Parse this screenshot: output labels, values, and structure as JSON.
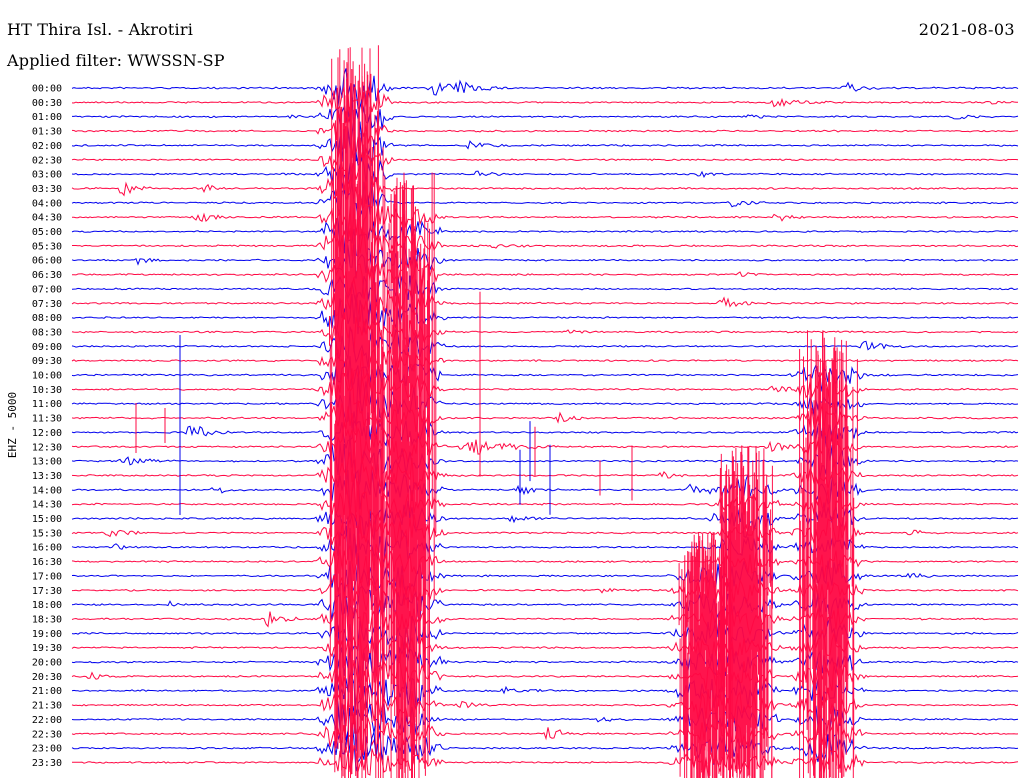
{
  "header": {
    "station": "HT Thira Isl. - Akrotiri",
    "filter": "Applied filter: WWSSN-SP",
    "date": "2021-08-03"
  },
  "chart_data": {
    "type": "line",
    "ylabel": "EHZ - 5000",
    "row_labels": [
      "00:00",
      "00:30",
      "01:00",
      "01:30",
      "02:00",
      "02:30",
      "03:00",
      "03:30",
      "04:00",
      "04:30",
      "05:00",
      "05:30",
      "06:00",
      "06:30",
      "07:00",
      "07:30",
      "08:00",
      "08:30",
      "09:00",
      "09:30",
      "10:00",
      "10:30",
      "11:00",
      "11:30",
      "12:00",
      "12:30",
      "13:00",
      "13:30",
      "14:00",
      "14:30",
      "15:00",
      "15:30",
      "16:00",
      "16:30",
      "17:00",
      "17:30",
      "18:00",
      "18:30",
      "19:00",
      "19:30",
      "20:00",
      "20:30",
      "21:00",
      "21:30",
      "22:00",
      "22:30",
      "23:00",
      "23:30"
    ],
    "series_colors": [
      "#0000ee",
      "#ff0844"
    ],
    "color_pattern": "alternating",
    "grid": false
  }
}
